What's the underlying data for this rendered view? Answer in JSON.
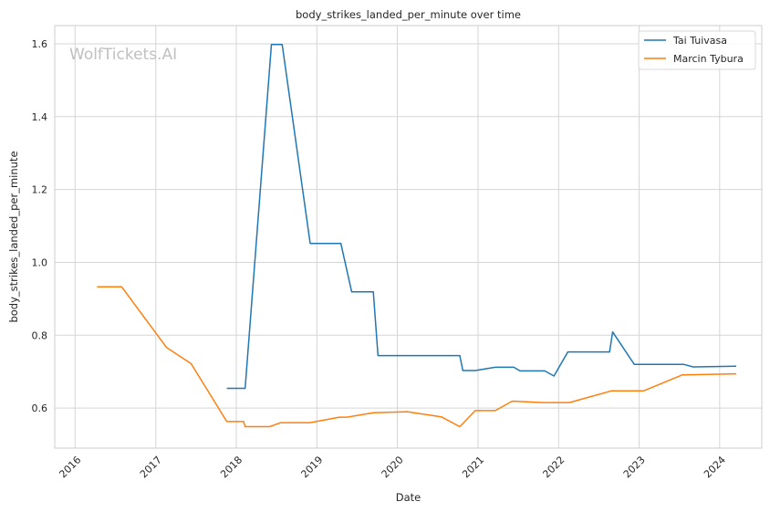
{
  "chart_data": {
    "type": "line",
    "title": "body_strikes_landed_per_minute over time",
    "xlabel": "Date",
    "ylabel": "body_strikes_landed_per_minute",
    "watermark": "WolfTickets.AI",
    "x_ticks": [
      "2016",
      "2017",
      "2018",
      "2019",
      "2020",
      "2021",
      "2022",
      "2023",
      "2024"
    ],
    "y_ticks": [
      "0.6",
      "0.8",
      "1.0",
      "1.2",
      "1.4",
      "1.6"
    ],
    "xlim": [
      "2015-10-01",
      "2024-07-10"
    ],
    "ylim": [
      0.49,
      1.65
    ],
    "grid": true,
    "legend_position": "top-right",
    "series": [
      {
        "name": "Tai Tuivasa",
        "color": "#1f77b4",
        "points": [
          [
            "2017-11-19",
            0.654
          ],
          [
            "2018-02-10",
            0.654
          ],
          [
            "2018-06-09",
            1.598
          ],
          [
            "2018-07-28",
            1.598
          ],
          [
            "2018-12-02",
            1.052
          ],
          [
            "2019-04-20",
            1.052
          ],
          [
            "2019-06-08",
            0.919
          ],
          [
            "2019-09-14",
            0.919
          ],
          [
            "2019-10-05",
            0.744
          ],
          [
            "2020-10-10",
            0.744
          ],
          [
            "2020-10-24",
            0.703
          ],
          [
            "2020-12-19",
            0.703
          ],
          [
            "2021-03-20",
            0.712
          ],
          [
            "2021-06-12",
            0.712
          ],
          [
            "2021-07-10",
            0.702
          ],
          [
            "2021-10-30",
            0.702
          ],
          [
            "2021-12-11",
            0.688
          ],
          [
            "2022-02-12",
            0.754
          ],
          [
            "2022-08-20",
            0.754
          ],
          [
            "2022-09-03",
            0.809
          ],
          [
            "2022-12-10",
            0.72
          ],
          [
            "2023-07-22",
            0.72
          ],
          [
            "2023-09-02",
            0.713
          ],
          [
            "2024-03-16",
            0.715
          ]
        ]
      },
      {
        "name": "Marcin Tybura",
        "color": "#ff7f0e",
        "points": [
          [
            "2016-04-10",
            0.933
          ],
          [
            "2016-07-30",
            0.933
          ],
          [
            "2017-02-19",
            0.766
          ],
          [
            "2017-06-10",
            0.722
          ],
          [
            "2017-11-19",
            0.563
          ],
          [
            "2018-02-03",
            0.563
          ],
          [
            "2018-02-10",
            0.549
          ],
          [
            "2018-06-01",
            0.549
          ],
          [
            "2018-07-22",
            0.56
          ],
          [
            "2018-12-01",
            0.56
          ],
          [
            "2019-04-13",
            0.575
          ],
          [
            "2019-05-18",
            0.575
          ],
          [
            "2019-09-14",
            0.587
          ],
          [
            "2020-02-15",
            0.59
          ],
          [
            "2020-07-18",
            0.576
          ],
          [
            "2020-10-10",
            0.549
          ],
          [
            "2020-12-19",
            0.593
          ],
          [
            "2021-03-20",
            0.593
          ],
          [
            "2021-06-05",
            0.619
          ],
          [
            "2021-10-23",
            0.615
          ],
          [
            "2022-02-19",
            0.615
          ],
          [
            "2022-08-28",
            0.647
          ],
          [
            "2023-01-21",
            0.647
          ],
          [
            "2023-07-15",
            0.691
          ],
          [
            "2024-03-16",
            0.694
          ]
        ]
      }
    ]
  }
}
